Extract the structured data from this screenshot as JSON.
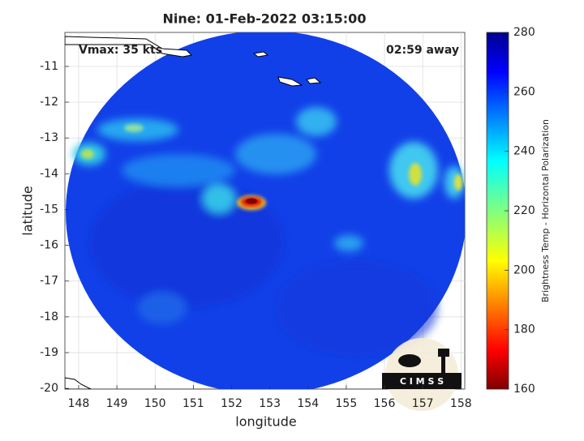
{
  "chart_data": {
    "type": "image",
    "title": "Nine: 01-Feb-2022 03:15:00",
    "annotations": [
      "Vmax: 35 kts",
      "02:59 away"
    ],
    "xlabel": "longitude",
    "ylabel": "latitude",
    "xlim": [
      147.64,
      158.1
    ],
    "xticks": [
      148,
      149,
      150,
      151,
      152,
      153,
      154,
      155,
      156,
      157,
      158
    ],
    "ylim": [
      -20.02,
      -10.05
    ],
    "yticks": [
      -11,
      -12,
      -13,
      -14,
      -15,
      -16,
      -17,
      -18,
      -19,
      -20
    ],
    "grid": true,
    "colorbar": {
      "label": "Brightness Temp - Horizontal Polarization",
      "lim": [
        160,
        280
      ],
      "ticks": [
        160,
        180,
        200,
        220,
        240,
        260,
        280
      ]
    },
    "logo": "C I M S S"
  }
}
